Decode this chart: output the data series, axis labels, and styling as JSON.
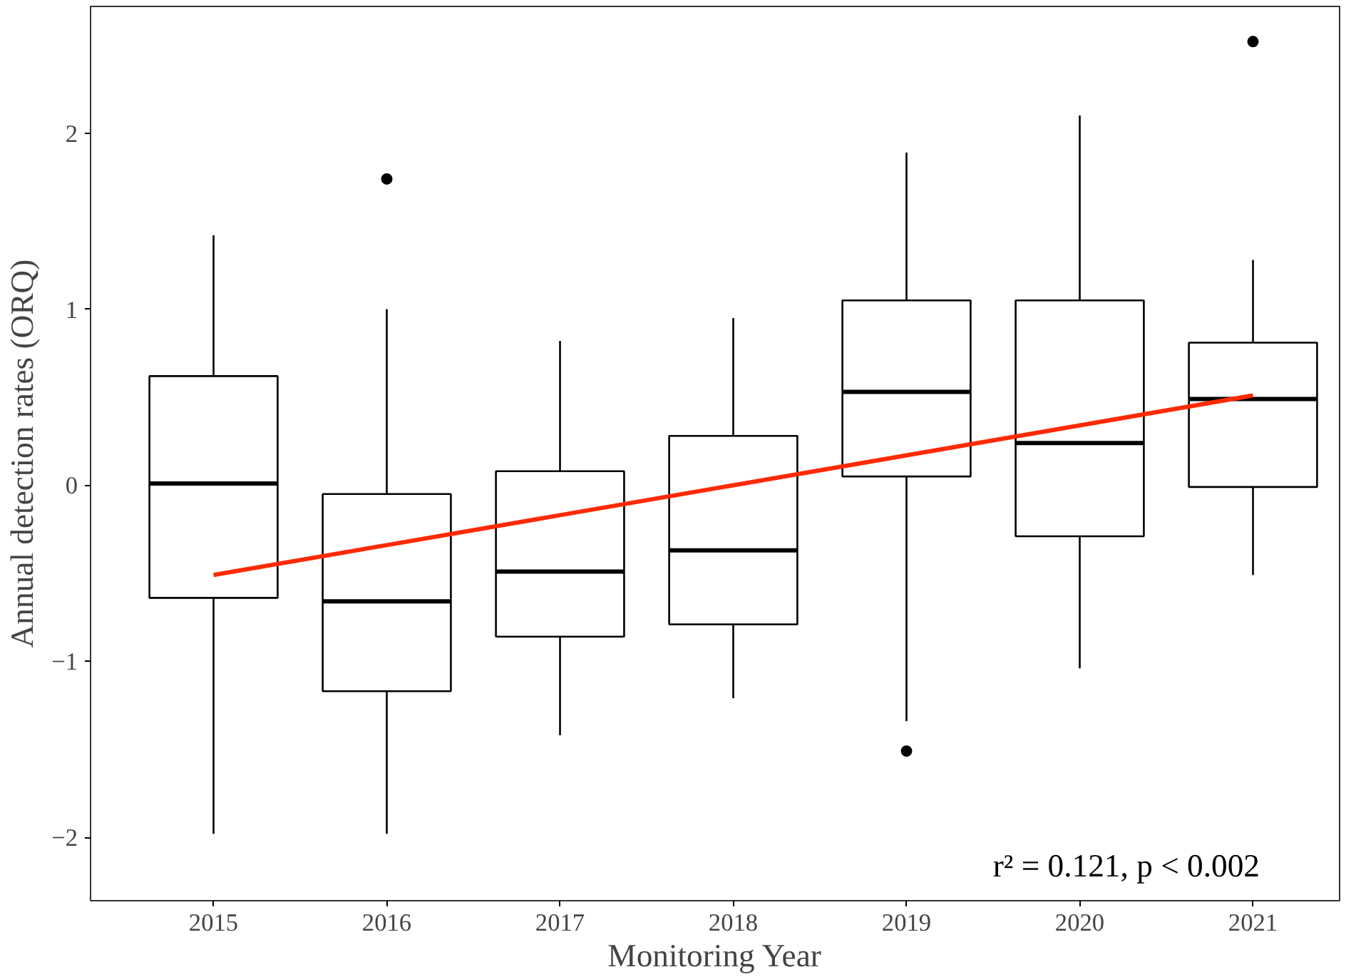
{
  "chart_data": {
    "type": "box",
    "xlabel": "Monitoring Year",
    "ylabel": "Annual detection rates (ORQ)",
    "categories": [
      "2015",
      "2016",
      "2017",
      "2018",
      "2019",
      "2020",
      "2021"
    ],
    "ylim": [
      -2.36,
      2.72
    ],
    "yticks": [
      -2,
      -1,
      0,
      1,
      2
    ],
    "grid": false,
    "boxes": [
      {
        "low": -1.98,
        "q1": -0.64,
        "median": 0.01,
        "q3": 0.62,
        "high": 1.42
      },
      {
        "low": -1.98,
        "q1": -1.17,
        "median": -0.66,
        "q3": -0.05,
        "high": 1.0,
        "outliers": [
          1.74
        ]
      },
      {
        "low": -1.42,
        "q1": -0.86,
        "median": -0.49,
        "q3": 0.08,
        "high": 0.82
      },
      {
        "low": -1.21,
        "q1": -0.79,
        "median": -0.37,
        "q3": 0.28,
        "high": 0.95
      },
      {
        "low": -1.34,
        "q1": 0.05,
        "median": 0.53,
        "q3": 1.05,
        "high": 1.89,
        "outliers": [
          -1.51
        ]
      },
      {
        "low": -1.04,
        "q1": -0.29,
        "median": 0.24,
        "q3": 1.05,
        "high": 2.1
      },
      {
        "low": -0.51,
        "q1": -0.01,
        "median": 0.49,
        "q3": 0.81,
        "high": 1.28,
        "outliers": [
          2.52
        ]
      }
    ],
    "series": [
      {
        "type": "line",
        "color": "#ff2a00",
        "values": [
          -0.51,
          -0.34,
          -0.17,
          0.0,
          0.17,
          0.34,
          0.51
        ]
      }
    ],
    "annotations": [
      "r² = 0.121, p < 0.002"
    ]
  }
}
